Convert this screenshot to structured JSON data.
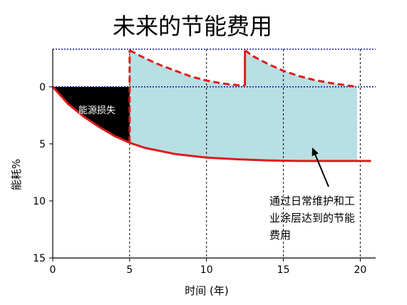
{
  "chart_data": {
    "type": "area",
    "title": "未来的节能费用",
    "xlabel": "时间 (年)",
    "ylabel": "能耗%",
    "xlim": [
      0,
      21
    ],
    "ylim": [
      15,
      -3.3
    ],
    "y_axis_inverted": true,
    "x_ticks": [
      "0",
      "5",
      "10",
      "15",
      "20"
    ],
    "y_ticks": [
      "0",
      "5",
      "10",
      "15"
    ],
    "baseline_curve": {
      "x": [
        0,
        1,
        2,
        3,
        4,
        5,
        6,
        8,
        10,
        12,
        14,
        16,
        18,
        20,
        20.7
      ],
      "y": [
        0,
        1.5,
        2.6,
        3.5,
        4.3,
        4.9,
        5.35,
        5.9,
        6.2,
        6.35,
        6.45,
        6.5,
        6.5,
        6.5,
        6.5
      ]
    },
    "maintained_curve": {
      "x": [
        5,
        6,
        7,
        8,
        9,
        10,
        11,
        12,
        12.5,
        12.5,
        13,
        14,
        15,
        16,
        17,
        18,
        19,
        19.8
      ],
      "y": [
        -3.2,
        -2.5,
        -1.9,
        -1.4,
        -0.9,
        -0.55,
        -0.3,
        -0.15,
        -0.1,
        -3.2,
        -2.7,
        -2.0,
        -1.4,
        -0.95,
        -0.6,
        -0.35,
        -0.15,
        0
      ]
    },
    "jump_markers_x": [
      5,
      12.5
    ],
    "reference_lines_y": [
      -3.3,
      0
    ],
    "grid_x": [
      5,
      10,
      15,
      20
    ],
    "annotations": {
      "loss_label": "能源损失",
      "savings_label_lines": [
        "通过日常维护和工",
        "业涂层达到的节能",
        "费用"
      ]
    },
    "colors": {
      "loss_fill": "#000000",
      "savings_fill": "#b8dfe3",
      "curve": "#e01b1b",
      "reference_line": "#1a1aa8"
    }
  }
}
